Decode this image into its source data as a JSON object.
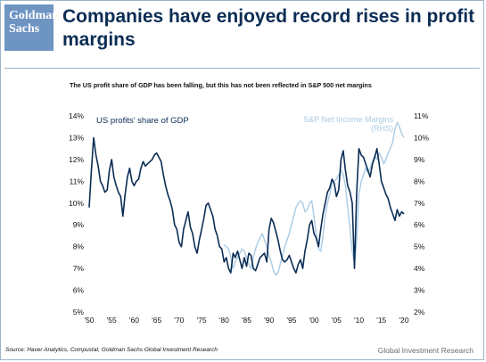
{
  "header": {
    "logo_line1": "Goldman",
    "logo_line2": "Sachs",
    "title": "Companies have enjoyed record rises in profit margins"
  },
  "subtitle": "The US profit share of GDP has been falling, but this has not been reflected in S&P 500 net margins",
  "footer": {
    "source": "Source: Haver Analytics, Compustat, Goldman Sachs Global Investment Research",
    "brand": "Global Investment Research"
  },
  "colors": {
    "gdp": "#0b2d55",
    "sp": "#a9cbe4",
    "text": "#111111",
    "brand": "#6e94c2"
  },
  "chart_data": {
    "type": "line",
    "grid": false,
    "legend": "inline labels (left: US profits, top-right: S&P)",
    "xlim": [
      1950,
      2021
    ],
    "x_ticks": [
      {
        "x": 1950,
        "label": "'50"
      },
      {
        "x": 1955,
        "label": "'55"
      },
      {
        "x": 1960,
        "label": "'60"
      },
      {
        "x": 1965,
        "label": "'65"
      },
      {
        "x": 1970,
        "label": "'70"
      },
      {
        "x": 1975,
        "label": "'75"
      },
      {
        "x": 1980,
        "label": "'80"
      },
      {
        "x": 1985,
        "label": "'85"
      },
      {
        "x": 1990,
        "label": "'90"
      },
      {
        "x": 1995,
        "label": "'95"
      },
      {
        "x": 2000,
        "label": "'00"
      },
      {
        "x": 2005,
        "label": "'05"
      },
      {
        "x": 2010,
        "label": "'10"
      },
      {
        "x": 2015,
        "label": "'15"
      },
      {
        "x": 2020,
        "label": "'20"
      }
    ],
    "y_left": {
      "lim": [
        5,
        14
      ],
      "ticks": [
        {
          "v": 14,
          "label": "14%"
        },
        {
          "v": 13,
          "label": "13%"
        },
        {
          "v": 12,
          "label": "12%"
        },
        {
          "v": 11,
          "label": "11%"
        },
        {
          "v": 10,
          "label": "10%"
        },
        {
          "v": 9,
          "label": "9%"
        },
        {
          "v": 8,
          "label": "8%"
        },
        {
          "v": 7,
          "label": "7%"
        },
        {
          "v": 6,
          "label": "6%"
        },
        {
          "v": 5,
          "label": "5%"
        }
      ]
    },
    "y_right": {
      "lim": [
        2,
        11
      ],
      "ticks": [
        {
          "v": 11,
          "label": "11%"
        },
        {
          "v": 10,
          "label": "10%"
        },
        {
          "v": 9,
          "label": "9%"
        },
        {
          "v": 8,
          "label": "8%"
        },
        {
          "v": 7,
          "label": "7%"
        },
        {
          "v": 6,
          "label": "6%"
        },
        {
          "v": 5,
          "label": "5%"
        },
        {
          "v": 4,
          "label": "4%"
        },
        {
          "v": 3,
          "label": "3%"
        },
        {
          "v": 2,
          "label": "2%"
        }
      ]
    },
    "series": [
      {
        "name": "US profits' share of GDP",
        "axis": "left",
        "color": "#0b2d55",
        "x": [
          1950,
          1950.5,
          1951,
          1951.5,
          1952,
          1952.5,
          1953,
          1953.5,
          1954,
          1954.5,
          1955,
          1955.5,
          1956,
          1956.5,
          1957,
          1957.5,
          1958,
          1958.5,
          1959,
          1959.5,
          1960,
          1960.5,
          1961,
          1961.5,
          1962,
          1962.5,
          1963,
          1963.5,
          1964,
          1964.5,
          1965,
          1965.5,
          1966,
          1966.5,
          1967,
          1967.5,
          1968,
          1968.5,
          1969,
          1969.5,
          1970,
          1970.5,
          1971,
          1971.5,
          1972,
          1972.5,
          1973,
          1973.5,
          1974,
          1974.5,
          1975,
          1975.5,
          1976,
          1976.5,
          1977,
          1977.5,
          1978,
          1978.5,
          1979,
          1979.5,
          1980,
          1980.5,
          1981,
          1981.5,
          1982,
          1982.5,
          1983,
          1983.5,
          1984,
          1984.5,
          1985,
          1985.5,
          1986,
          1986.5,
          1987,
          1987.5,
          1988,
          1988.5,
          1989,
          1989.5,
          1990,
          1990.5,
          1991,
          1991.5,
          1992,
          1992.5,
          1993,
          1993.5,
          1994,
          1994.5,
          1995,
          1995.5,
          1996,
          1996.5,
          1997,
          1997.5,
          1998,
          1998.5,
          1999,
          1999.5,
          2000,
          2000.5,
          2001,
          2001.5,
          2002,
          2002.5,
          2003,
          2003.5,
          2004,
          2004.5,
          2005,
          2005.5,
          2006,
          2006.5,
          2007,
          2007.5,
          2008,
          2008.5,
          2009,
          2009.5,
          2010,
          2010.5,
          2011,
          2011.5,
          2012,
          2012.5,
          2013,
          2013.5,
          2014,
          2014.5,
          2015,
          2015.5,
          2016,
          2016.5,
          2017,
          2017.5,
          2018,
          2018.5,
          2019,
          2019.5,
          2020
        ],
        "y": [
          9.8,
          11.5,
          13.0,
          12.2,
          11.7,
          11.0,
          10.8,
          10.5,
          10.6,
          11.5,
          12.0,
          11.2,
          10.8,
          10.5,
          10.3,
          9.4,
          10.4,
          11.2,
          11.6,
          11.0,
          10.8,
          11.0,
          11.1,
          11.6,
          11.9,
          11.7,
          11.8,
          11.9,
          12.0,
          12.2,
          12.3,
          12.1,
          11.9,
          11.3,
          10.8,
          10.4,
          10.1,
          9.7,
          9.0,
          8.8,
          8.2,
          8.0,
          8.8,
          9.2,
          9.6,
          8.9,
          8.6,
          8.0,
          7.7,
          8.3,
          8.8,
          9.3,
          9.9,
          10.0,
          9.7,
          9.4,
          8.8,
          8.5,
          8.0,
          7.9,
          7.3,
          7.5,
          7.0,
          6.8,
          7.7,
          7.5,
          7.8,
          7.4,
          7.0,
          7.5,
          7.1,
          7.7,
          7.6,
          7.0,
          6.9,
          7.2,
          7.5,
          7.6,
          7.7,
          7.3,
          8.8,
          9.3,
          9.1,
          8.7,
          8.3,
          7.8,
          7.4,
          7.3,
          7.4,
          7.6,
          7.3,
          7.0,
          6.8,
          7.2,
          7.4,
          7.0,
          7.8,
          8.3,
          9.0,
          9.2,
          8.6,
          8.4,
          8.0,
          8.8,
          9.5,
          10.0,
          10.5,
          10.7,
          11.1,
          10.9,
          10.3,
          10.6,
          12.0,
          12.4,
          11.5,
          10.8,
          10.5,
          10.0,
          7.0,
          10.5,
          12.5,
          12.2,
          12.1,
          11.8,
          11.5,
          11.2,
          11.8,
          12.1,
          12.5,
          11.8,
          11.0,
          10.7,
          10.4,
          10.2,
          9.8,
          9.5,
          9.2,
          9.7,
          9.4,
          9.6,
          9.5
        ]
      },
      {
        "name": "S&P Net Income Margins (RHS)",
        "axis": "right",
        "color": "#a9cbe4",
        "x": [
          1980,
          1980.5,
          1981,
          1981.5,
          1982,
          1982.5,
          1983,
          1983.5,
          1984,
          1984.5,
          1985,
          1985.5,
          1986,
          1986.5,
          1987,
          1987.5,
          1988,
          1988.5,
          1989,
          1989.5,
          1990,
          1990.5,
          1991,
          1991.5,
          1992,
          1992.5,
          1993,
          1993.5,
          1994,
          1994.5,
          1995,
          1995.5,
          1996,
          1996.5,
          1997,
          1997.5,
          1998,
          1998.5,
          1999,
          1999.5,
          2000,
          2000.5,
          2001,
          2001.5,
          2002,
          2002.5,
          2003,
          2003.5,
          2004,
          2004.5,
          2005,
          2005.5,
          2006,
          2006.5,
          2007,
          2007.5,
          2008,
          2008.5,
          2009,
          2009.5,
          2010,
          2010.5,
          2011,
          2011.5,
          2012,
          2012.5,
          2013,
          2013.5,
          2014,
          2014.5,
          2015,
          2015.5,
          2016,
          2016.5,
          2017,
          2017.5,
          2018,
          2018.5,
          2019,
          2019.5,
          2020
        ],
        "y": [
          5.1,
          5.0,
          4.9,
          4.5,
          4.0,
          4.3,
          4.5,
          4.7,
          4.9,
          4.8,
          4.5,
          4.2,
          4.0,
          4.5,
          4.9,
          5.2,
          5.4,
          5.6,
          5.3,
          5.0,
          4.6,
          4.3,
          3.9,
          3.7,
          3.8,
          4.2,
          4.6,
          5.0,
          5.3,
          5.6,
          6.0,
          6.4,
          6.8,
          7.0,
          7.1,
          7.0,
          6.6,
          6.7,
          7.0,
          7.1,
          6.4,
          5.6,
          4.9,
          4.8,
          5.5,
          6.4,
          7.0,
          7.4,
          7.9,
          8.0,
          8.1,
          8.3,
          8.5,
          8.3,
          7.8,
          6.8,
          5.8,
          4.8,
          4.2,
          5.3,
          7.4,
          8.0,
          8.3,
          8.6,
          8.4,
          8.6,
          8.9,
          9.2,
          9.0,
          9.3,
          9.1,
          8.8,
          9.0,
          9.3,
          9.5,
          9.8,
          10.4,
          10.7,
          10.5,
          10.2,
          10.0
        ]
      }
    ],
    "annotations": [
      {
        "text": "US profits' share of GDP",
        "series": 0
      },
      {
        "text": "S&P Net Income Margins",
        "series": 1
      },
      {
        "text": "(RHS)",
        "series": 1
      }
    ]
  }
}
